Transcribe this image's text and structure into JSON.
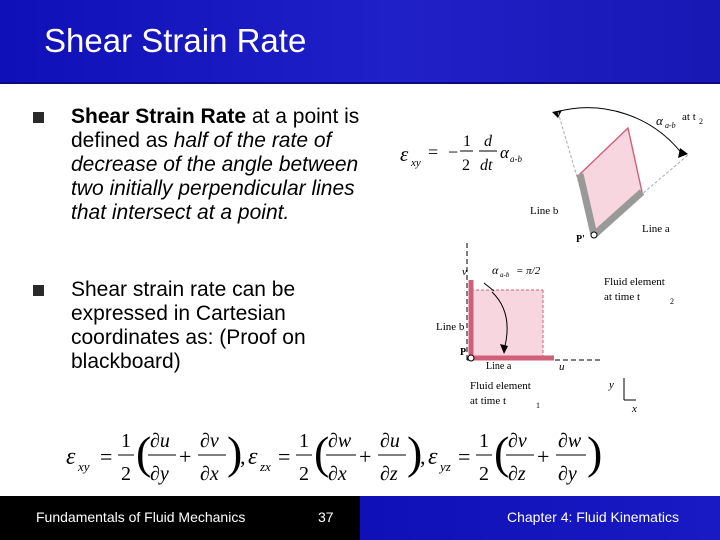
{
  "slide": {
    "title": "Shear Strain Rate",
    "bullets": [
      {
        "bold_lead": "Shear Strain Rate",
        "text_plain": " at a point is defined as ",
        "text_italic": "half of the rate of decrease of the angle between two initially perpendicular lines that intersect at a point."
      },
      {
        "text": "Shear strain rate can be expressed in Cartesian coordinates as: (Proof on blackboard)"
      }
    ]
  },
  "equation_top": {
    "lhs": "ε",
    "lhs_sub": "xy",
    "eq": "=",
    "minus": "−",
    "num1": "1",
    "den1": "2",
    "num2": "d",
    "den2": "dt",
    "alpha": "α",
    "alpha_sub": "a-b"
  },
  "figure_top": {
    "angle_label": "α",
    "angle_sub": "a-b",
    "at": "at t",
    "t_sub": "2",
    "line_b": "Line b",
    "line_a": "Line a",
    "point": "P'"
  },
  "figure_bottom": {
    "v": "v",
    "u": "u",
    "alpha_label": "α",
    "alpha_sub": "a-b",
    "alpha_value": "= π/2",
    "line_b": "Line b",
    "line_a": "Line a",
    "point": "P",
    "fluid_t2": "Fluid element",
    "fluid_t2_b": "at time t",
    "t2_sub": "2",
    "fluid_t1": "Fluid element",
    "fluid_t1_b": "at time t",
    "t1_sub": "1",
    "axis_y": "y",
    "axis_x": "x"
  },
  "equation_bottom": {
    "e": "ε",
    "xy": "xy",
    "zx": "zx",
    "yz": "yz",
    "half_num": "1",
    "half_den": "2",
    "du": "∂u",
    "dy": "∂y",
    "dv": "∂v",
    "dx": "∂x",
    "dw": "∂w",
    "dz": "∂z",
    "plus": "+",
    "eq": "=",
    "comma": ","
  },
  "footer": {
    "left": "Fundamentals of Fluid Mechanics",
    "page": "37",
    "right": "Chapter 4:  Fluid Kinematics"
  }
}
